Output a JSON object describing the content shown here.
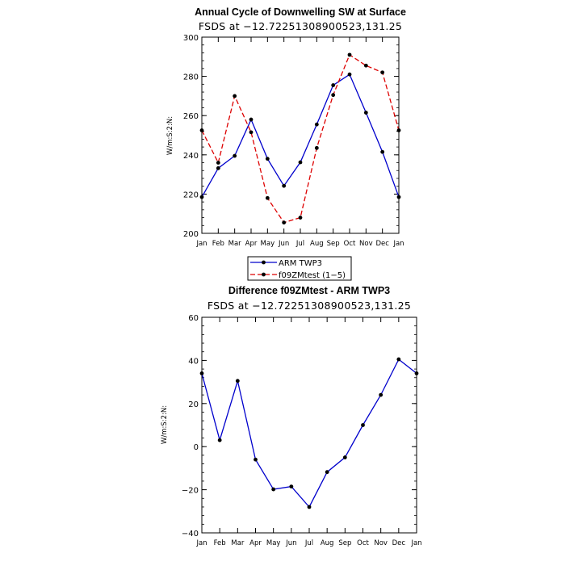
{
  "chart_data": [
    {
      "type": "line",
      "title": "Annual Cycle of Downwelling SW at Surface",
      "subtitle": "FSDS at −12.72251308900523,131.25",
      "ylabel": "W/m:S:2:N:",
      "xlabel": "",
      "categories": [
        "Jan",
        "Feb",
        "Mar",
        "Apr",
        "May",
        "Jun",
        "Jul",
        "Aug",
        "Sep",
        "Oct",
        "Nov",
        "Dec",
        "Jan"
      ],
      "ylim": [
        200,
        300
      ],
      "yticks": [
        "200",
        "220",
        "240",
        "260",
        "280",
        "300"
      ],
      "series": [
        {
          "name": "ARM TWP3",
          "color": "#0000cc",
          "dash": "solid",
          "marker": "dot",
          "values": [
            218.5,
            233.2,
            239.5,
            258.0,
            238.0,
            224.2,
            236.2,
            255.5,
            275.5,
            281.0,
            261.5,
            241.5,
            218.5
          ]
        },
        {
          "name": "f09ZMtest (1−5)",
          "color": "#dd0000",
          "dash": "dashed",
          "marker": "dot",
          "values": [
            252.5,
            236.0,
            270.0,
            251.5,
            218.0,
            205.5,
            208.0,
            243.5,
            270.5,
            291.0,
            285.5,
            282.0,
            252.5
          ]
        }
      ],
      "legend": "below"
    },
    {
      "type": "line",
      "title": "Difference f09ZMtest - ARM TWP3",
      "subtitle": "FSDS at −12.72251308900523,131.25",
      "ylabel": "W/m:S:2:N:",
      "xlabel": "",
      "categories": [
        "Jan",
        "Feb",
        "Mar",
        "Apr",
        "May",
        "Jun",
        "Jul",
        "Aug",
        "Sep",
        "Oct",
        "Nov",
        "Dec",
        "Jan"
      ],
      "ylim": [
        -40,
        60
      ],
      "yticks": [
        "−40",
        "−20",
        "0",
        "20",
        "40",
        "60"
      ],
      "series": [
        {
          "color": "#0000cc",
          "dash": "solid",
          "marker": "dot",
          "values": [
            34.0,
            3.0,
            30.5,
            -6.0,
            -19.8,
            -18.5,
            -28.0,
            -11.8,
            -5.0,
            10.0,
            24.0,
            40.5,
            34.0
          ]
        }
      ]
    }
  ]
}
